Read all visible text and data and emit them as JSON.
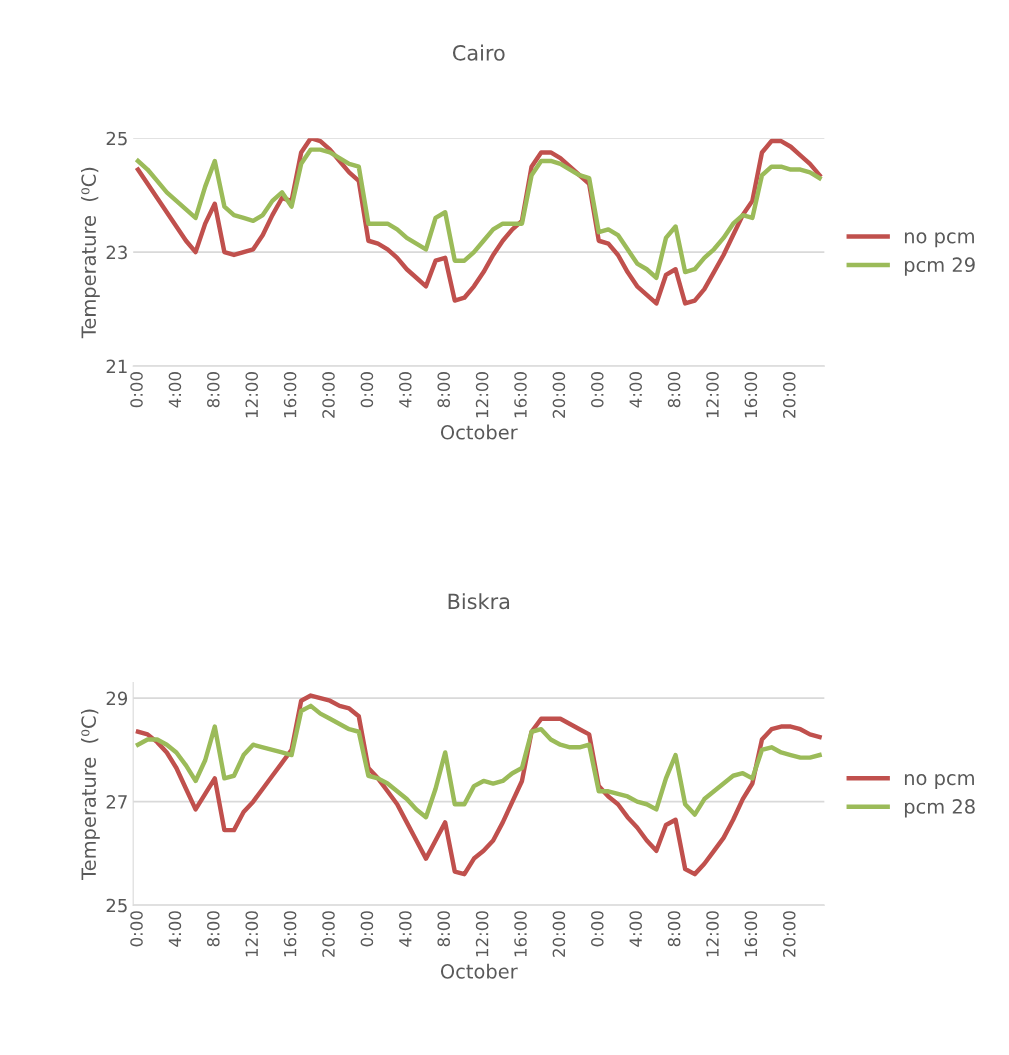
{
  "chart_data": [
    {
      "type": "line",
      "title": "Cairo",
      "xlabel": "October",
      "ylabel": "Temperature  (⁰C)",
      "categories": [
        "0:00",
        null,
        null,
        null,
        "4:00",
        null,
        null,
        null,
        "8:00",
        null,
        null,
        null,
        "12:00",
        null,
        null,
        null,
        "16:00",
        null,
        null,
        null,
        "20:00",
        null,
        null,
        null,
        "0:00",
        null,
        null,
        null,
        "4:00",
        null,
        null,
        null,
        "8:00",
        null,
        null,
        null,
        "12:00",
        null,
        null,
        null,
        "16:00",
        null,
        null,
        null,
        "20:00",
        null,
        null,
        null,
        "0:00",
        null,
        null,
        null,
        "4:00",
        null,
        null,
        null,
        "8:00",
        null,
        null,
        null,
        "12:00",
        null,
        null,
        null,
        "16:00",
        null,
        null,
        null,
        "20:00",
        null,
        null,
        null
      ],
      "series": [
        {
          "name": "no pcm",
          "color": "#c0504d",
          "values": [
            24.45,
            24.2,
            23.95,
            23.7,
            23.45,
            23.2,
            23.0,
            23.5,
            23.85,
            23.0,
            22.95,
            23.0,
            23.05,
            23.3,
            23.65,
            23.95,
            23.9,
            24.75,
            25.0,
            24.95,
            24.8,
            24.6,
            24.4,
            24.25,
            23.2,
            23.15,
            23.05,
            22.9,
            22.7,
            22.55,
            22.4,
            22.85,
            22.9,
            22.15,
            22.2,
            22.4,
            22.65,
            22.95,
            23.2,
            23.4,
            23.55,
            24.5,
            24.75,
            24.75,
            24.65,
            24.5,
            24.35,
            24.2,
            23.2,
            23.15,
            22.95,
            22.65,
            22.4,
            22.25,
            22.1,
            22.6,
            22.7,
            22.1,
            22.15,
            22.35,
            22.65,
            22.95,
            23.3,
            23.65,
            23.9,
            24.75,
            24.95,
            24.95,
            24.85,
            24.7,
            24.55,
            24.35
          ]
        },
        {
          "name": "pcm 29",
          "color": "#9bbb59",
          "values": [
            24.6,
            24.45,
            24.25,
            24.05,
            23.9,
            23.75,
            23.6,
            24.15,
            24.6,
            23.8,
            23.65,
            23.6,
            23.55,
            23.65,
            23.9,
            24.05,
            23.8,
            24.55,
            24.8,
            24.8,
            24.75,
            24.65,
            24.55,
            24.5,
            23.5,
            23.5,
            23.5,
            23.4,
            23.25,
            23.15,
            23.05,
            23.6,
            23.7,
            22.85,
            22.85,
            23.0,
            23.2,
            23.4,
            23.5,
            23.5,
            23.5,
            24.35,
            24.6,
            24.6,
            24.55,
            24.45,
            24.35,
            24.3,
            23.35,
            23.4,
            23.3,
            23.05,
            22.8,
            22.7,
            22.55,
            23.25,
            23.45,
            22.65,
            22.7,
            22.9,
            23.05,
            23.25,
            23.5,
            23.65,
            23.6,
            24.35,
            24.5,
            24.5,
            24.45,
            24.45,
            24.4,
            24.3
          ]
        }
      ],
      "ylim": [
        21,
        25
      ],
      "yticks": [
        21,
        23,
        25
      ],
      "grid": "y",
      "legend": "right",
      "line_style": "solid",
      "marker": "none"
    },
    {
      "type": "line",
      "title": "Biskra",
      "xlabel": "October",
      "ylabel": "Temperature  (⁰C)",
      "categories": [
        "0:00",
        null,
        null,
        null,
        "4:00",
        null,
        null,
        null,
        "8:00",
        null,
        null,
        null,
        "12:00",
        null,
        null,
        null,
        "16:00",
        null,
        null,
        null,
        "20:00",
        null,
        null,
        null,
        "0:00",
        null,
        null,
        null,
        "4:00",
        null,
        null,
        null,
        "8:00",
        null,
        null,
        null,
        "12:00",
        null,
        null,
        null,
        "16:00",
        null,
        null,
        null,
        "20:00",
        null,
        null,
        null,
        "0:00",
        null,
        null,
        null,
        "4:00",
        null,
        null,
        null,
        "8:00",
        null,
        null,
        null,
        "12:00",
        null,
        null,
        null,
        "16:00",
        null,
        null,
        null,
        "20:00",
        null,
        null,
        null
      ],
      "series": [
        {
          "name": "no pcm",
          "color": "#c0504d",
          "values": [
            28.35,
            28.3,
            28.15,
            27.95,
            27.65,
            27.25,
            26.85,
            27.15,
            27.45,
            26.45,
            26.45,
            26.8,
            27.0,
            27.25,
            27.5,
            27.75,
            28.0,
            28.95,
            29.05,
            29.0,
            28.95,
            28.85,
            28.8,
            28.65,
            27.65,
            27.45,
            27.2,
            26.95,
            26.6,
            26.25,
            25.9,
            26.25,
            26.6,
            25.65,
            25.6,
            25.9,
            26.05,
            26.25,
            26.6,
            27.0,
            27.4,
            28.35,
            28.6,
            28.6,
            28.6,
            28.5,
            28.4,
            28.3,
            27.3,
            27.1,
            26.95,
            26.7,
            26.5,
            26.25,
            26.05,
            26.55,
            26.65,
            25.7,
            25.6,
            25.8,
            26.05,
            26.3,
            26.65,
            27.05,
            27.35,
            28.2,
            28.4,
            28.45,
            28.45,
            28.4,
            28.3,
            28.25
          ]
        },
        {
          "name": "pcm 28",
          "color": "#9bbb59",
          "values": [
            28.1,
            28.2,
            28.2,
            28.1,
            27.95,
            27.7,
            27.4,
            27.8,
            28.45,
            27.45,
            27.5,
            27.9,
            28.1,
            28.05,
            28.0,
            27.95,
            27.9,
            28.75,
            28.85,
            28.7,
            28.6,
            28.5,
            28.4,
            28.35,
            27.5,
            27.45,
            27.35,
            27.2,
            27.05,
            26.85,
            26.7,
            27.25,
            27.95,
            26.95,
            26.95,
            27.3,
            27.4,
            27.35,
            27.4,
            27.55,
            27.65,
            28.35,
            28.4,
            28.2,
            28.1,
            28.05,
            28.05,
            28.1,
            27.2,
            27.2,
            27.15,
            27.1,
            27.0,
            26.95,
            26.85,
            27.45,
            27.9,
            26.95,
            26.75,
            27.05,
            27.2,
            27.35,
            27.5,
            27.55,
            27.45,
            28.0,
            28.05,
            27.95,
            27.9,
            27.85,
            27.85,
            27.9
          ]
        }
      ],
      "ylim": [
        25,
        29.3
      ],
      "yticks": [
        25,
        27,
        29
      ],
      "grid": "y",
      "legend": "right",
      "line_style": "solid",
      "marker": "none"
    }
  ]
}
